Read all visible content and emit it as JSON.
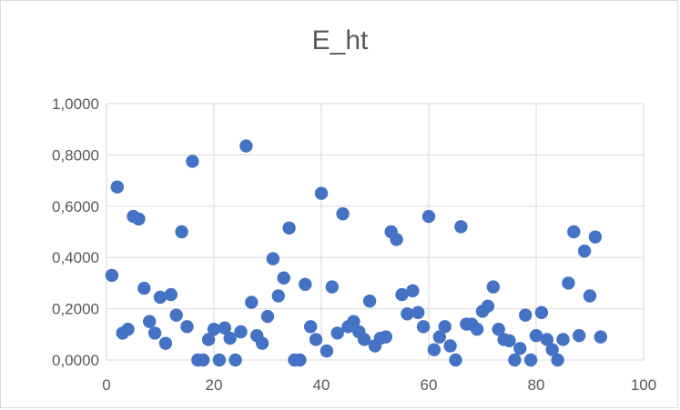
{
  "chart_data": {
    "type": "scatter",
    "title": "E_ht",
    "xlabel": "",
    "ylabel": "",
    "xlim": [
      0,
      100
    ],
    "ylim": [
      0,
      1
    ],
    "x_ticks": [
      0,
      20,
      40,
      60,
      80,
      100
    ],
    "x_tick_labels": [
      "0",
      "20",
      "40",
      "60",
      "80",
      "100"
    ],
    "y_ticks": [
      0,
      0.2,
      0.4,
      0.6,
      0.8,
      1.0
    ],
    "y_tick_labels": [
      "0,0000",
      "0,2000",
      "0,4000",
      "0,6000",
      "0,8000",
      "1,0000"
    ],
    "grid": true,
    "legend": "none",
    "marker_color": "#4472c4",
    "series": [
      {
        "x": [
          1,
          2,
          3,
          4,
          5,
          6,
          7,
          8,
          9,
          10,
          11,
          12,
          13,
          14,
          15,
          16,
          17,
          18,
          19,
          20,
          21,
          22,
          23,
          24,
          25,
          26,
          27,
          28,
          29,
          30,
          31,
          32,
          33,
          34,
          35,
          36,
          37,
          38,
          39,
          40,
          41,
          42,
          43,
          44,
          45,
          46,
          47,
          48,
          49,
          50,
          51,
          52,
          53,
          54,
          55,
          56,
          57,
          58,
          59,
          60,
          61,
          62,
          63,
          64,
          65,
          66,
          67,
          68,
          69,
          70,
          71,
          72,
          73,
          74,
          75,
          76,
          77,
          78,
          79,
          80,
          81,
          82,
          83,
          84,
          85,
          86,
          87,
          88,
          89,
          90,
          91,
          92
        ],
        "y": [
          0.33,
          0.675,
          0.105,
          0.12,
          0.56,
          0.55,
          0.28,
          0.15,
          0.105,
          0.245,
          0.065,
          0.255,
          0.175,
          0.5,
          0.13,
          0.775,
          0.0,
          0.0,
          0.08,
          0.12,
          0.0,
          0.125,
          0.085,
          0.0,
          0.11,
          0.835,
          0.225,
          0.095,
          0.065,
          0.17,
          0.395,
          0.25,
          0.32,
          0.515,
          0.0,
          0.0,
          0.295,
          0.13,
          0.08,
          0.65,
          0.035,
          0.285,
          0.105,
          0.57,
          0.13,
          0.15,
          0.11,
          0.08,
          0.23,
          0.055,
          0.085,
          0.09,
          0.5,
          0.47,
          0.255,
          0.18,
          0.27,
          0.185,
          0.13,
          0.56,
          0.04,
          0.09,
          0.13,
          0.055,
          0.0,
          0.52,
          0.14,
          0.14,
          0.12,
          0.19,
          0.21,
          0.285,
          0.12,
          0.08,
          0.075,
          0.0,
          0.045,
          0.175,
          0.0,
          0.095,
          0.185,
          0.08,
          0.04,
          0.0,
          0.08,
          0.3,
          0.5,
          0.095,
          0.425,
          0.25,
          0.48,
          0.09
        ]
      }
    ]
  }
}
